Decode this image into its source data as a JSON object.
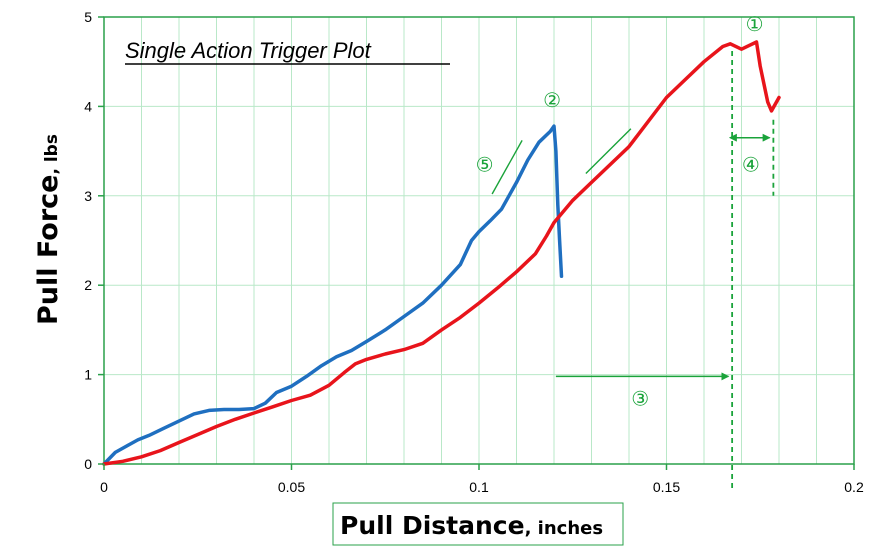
{
  "chart_data": {
    "type": "line",
    "title": "Single Action Trigger Plot",
    "xlabel": "Pull Distance",
    "xlabel_unit": ", inches",
    "ylabel": "Pull Force",
    "ylabel_unit": ", lbs",
    "xlim": [
      0,
      0.2
    ],
    "ylim": [
      0,
      5
    ],
    "xticks": [
      0,
      0.05,
      0.1,
      0.15,
      0.2
    ],
    "xtick_labels": [
      "0",
      "0.05",
      "0.1",
      "0.15",
      "0.2"
    ],
    "yticks": [
      0,
      1,
      2,
      3,
      4,
      5
    ],
    "ytick_labels": [
      "0",
      "1",
      "2",
      "3",
      "4",
      "5"
    ],
    "grid": true,
    "minor_x_step": 0.01,
    "series": [
      {
        "color": "#1f6fc0",
        "x": [
          0,
          0.003,
          0.006,
          0.009,
          0.012,
          0.016,
          0.02,
          0.024,
          0.028,
          0.032,
          0.036,
          0.04,
          0.043,
          0.046,
          0.05,
          0.054,
          0.058,
          0.062,
          0.066,
          0.07,
          0.075,
          0.08,
          0.085,
          0.09,
          0.095,
          0.098,
          0.1,
          0.103,
          0.106,
          0.11,
          0.113,
          0.116,
          0.119,
          0.12,
          0.1205,
          0.121,
          0.1215,
          0.122
        ],
        "y": [
          0,
          0.13,
          0.2,
          0.27,
          0.32,
          0.4,
          0.48,
          0.56,
          0.6,
          0.61,
          0.61,
          0.62,
          0.68,
          0.8,
          0.87,
          0.98,
          1.1,
          1.2,
          1.27,
          1.37,
          1.5,
          1.65,
          1.8,
          2.0,
          2.23,
          2.5,
          2.6,
          2.72,
          2.85,
          3.15,
          3.4,
          3.6,
          3.72,
          3.78,
          3.5,
          2.9,
          2.5,
          2.1
        ]
      },
      {
        "color": "#e8141b",
        "x": [
          0,
          0.005,
          0.01,
          0.015,
          0.02,
          0.025,
          0.03,
          0.035,
          0.04,
          0.045,
          0.05,
          0.055,
          0.06,
          0.064,
          0.067,
          0.07,
          0.075,
          0.08,
          0.085,
          0.09,
          0.095,
          0.1,
          0.105,
          0.11,
          0.115,
          0.118,
          0.12,
          0.125,
          0.13,
          0.14,
          0.15,
          0.155,
          0.16,
          0.165,
          0.167,
          0.17,
          0.172,
          0.174,
          0.175,
          0.177,
          0.178,
          0.18
        ],
        "y": [
          0,
          0.03,
          0.08,
          0.15,
          0.24,
          0.33,
          0.42,
          0.5,
          0.57,
          0.64,
          0.71,
          0.77,
          0.88,
          1.02,
          1.12,
          1.17,
          1.23,
          1.28,
          1.35,
          1.5,
          1.64,
          1.8,
          1.97,
          2.15,
          2.35,
          2.55,
          2.7,
          2.95,
          3.15,
          3.55,
          4.1,
          4.3,
          4.5,
          4.67,
          4.7,
          4.64,
          4.68,
          4.72,
          4.45,
          4.05,
          3.95,
          4.1
        ]
      }
    ],
    "annotations": [
      {
        "label": "①",
        "x": 0.1735,
        "y": 4.92
      },
      {
        "label": "②",
        "x": 0.1195,
        "y": 4.07
      },
      {
        "label": "③",
        "x": 0.143,
        "y": 0.73
      },
      {
        "label": "④",
        "x": 0.1725,
        "y": 3.35
      },
      {
        "label": "⑤",
        "x": 0.1015,
        "y": 3.35
      }
    ]
  }
}
